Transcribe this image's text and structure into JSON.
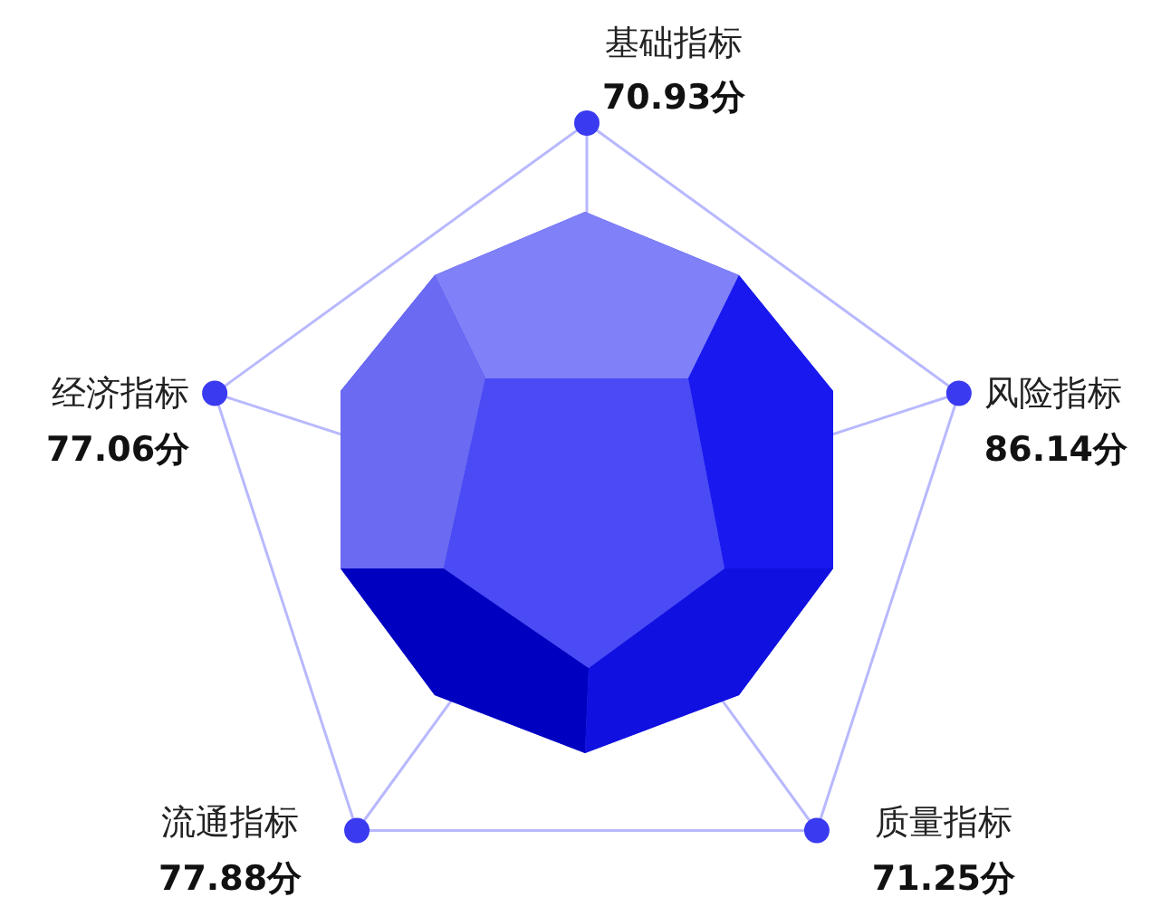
{
  "chart_data": {
    "type": "other",
    "categories": [
      "基础指标",
      "风险指标",
      "质量指标",
      "流通指标",
      "经济指标"
    ],
    "values": [
      70.93,
      86.14,
      71.25,
      77.88,
      77.06
    ],
    "value_labels": [
      "70.93分",
      "86.14分",
      "71.25分",
      "77.88分",
      "77.06分"
    ],
    "color": "#4b4bf5"
  }
}
